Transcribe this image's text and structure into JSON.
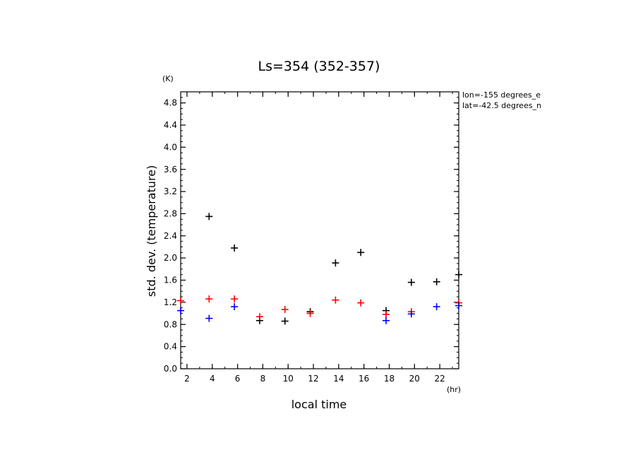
{
  "chart_data": {
    "type": "scatter",
    "title": "Ls=354 (352-357)",
    "xlabel": "local time",
    "ylabel": "std. dev. (temperature)",
    "x_unit": "(hr)",
    "y_unit": "(K)",
    "xlim": [
      1.5,
      23.5
    ],
    "ylim": [
      0,
      5.0
    ],
    "x_ticks": [
      2,
      4,
      6,
      8,
      10,
      12,
      14,
      16,
      18,
      20,
      22
    ],
    "y_ticks": [
      0.0,
      0.4,
      0.8,
      1.2,
      1.6,
      2.0,
      2.4,
      2.8,
      3.2,
      3.6,
      4.0,
      4.4,
      4.8
    ],
    "annotations": [
      "lon=-155 degrees_e",
      "lat=-42.5 degrees_n"
    ],
    "series": [
      {
        "color": "#000000",
        "marker": "+",
        "x": [
          3.75,
          5.75,
          7.75,
          9.75,
          11.75,
          13.75,
          15.75,
          17.75,
          19.75,
          21.75,
          23.5
        ],
        "y": [
          2.75,
          2.18,
          0.87,
          0.86,
          1.03,
          1.91,
          2.1,
          1.05,
          1.56,
          1.57,
          1.7
        ]
      },
      {
        "color": "#ff0000",
        "marker": "+",
        "x": [
          1.5,
          3.75,
          5.75,
          7.75,
          9.75,
          11.75,
          13.75,
          15.75,
          17.75,
          19.75,
          23.5
        ],
        "y": [
          1.23,
          1.26,
          1.26,
          0.94,
          1.07,
          1.0,
          1.24,
          1.19,
          0.98,
          1.03,
          1.19
        ]
      },
      {
        "color": "#0000ff",
        "marker": "+",
        "x": [
          1.5,
          3.75,
          5.75,
          17.75,
          19.75,
          21.75,
          23.5
        ],
        "y": [
          1.05,
          0.91,
          1.12,
          0.87,
          0.99,
          1.12,
          1.14
        ]
      }
    ]
  }
}
